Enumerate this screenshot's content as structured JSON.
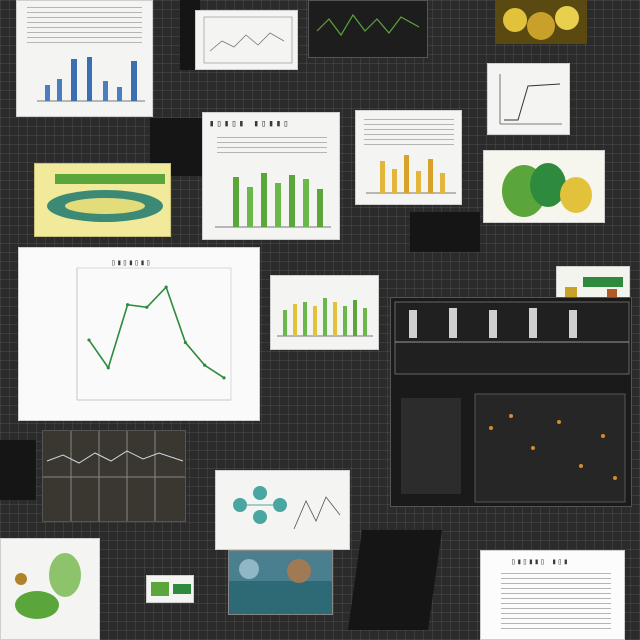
{
  "line_chart": {
    "type": "line",
    "x": [
      1,
      2,
      3,
      4,
      5,
      6,
      7,
      8
    ],
    "values": [
      2.3,
      1.2,
      3.7,
      3.6,
      4.4,
      2.2,
      1.3,
      0.8
    ],
    "color": "#2e8b3d",
    "ylim": [
      0,
      5
    ]
  },
  "colors": {
    "accent_green": "#5aa63a",
    "accent_yellow": "#e3c23b",
    "accent_blue": "#4a7fbf",
    "paper": "#f4f4f2",
    "background": "#2b2b2b"
  }
}
